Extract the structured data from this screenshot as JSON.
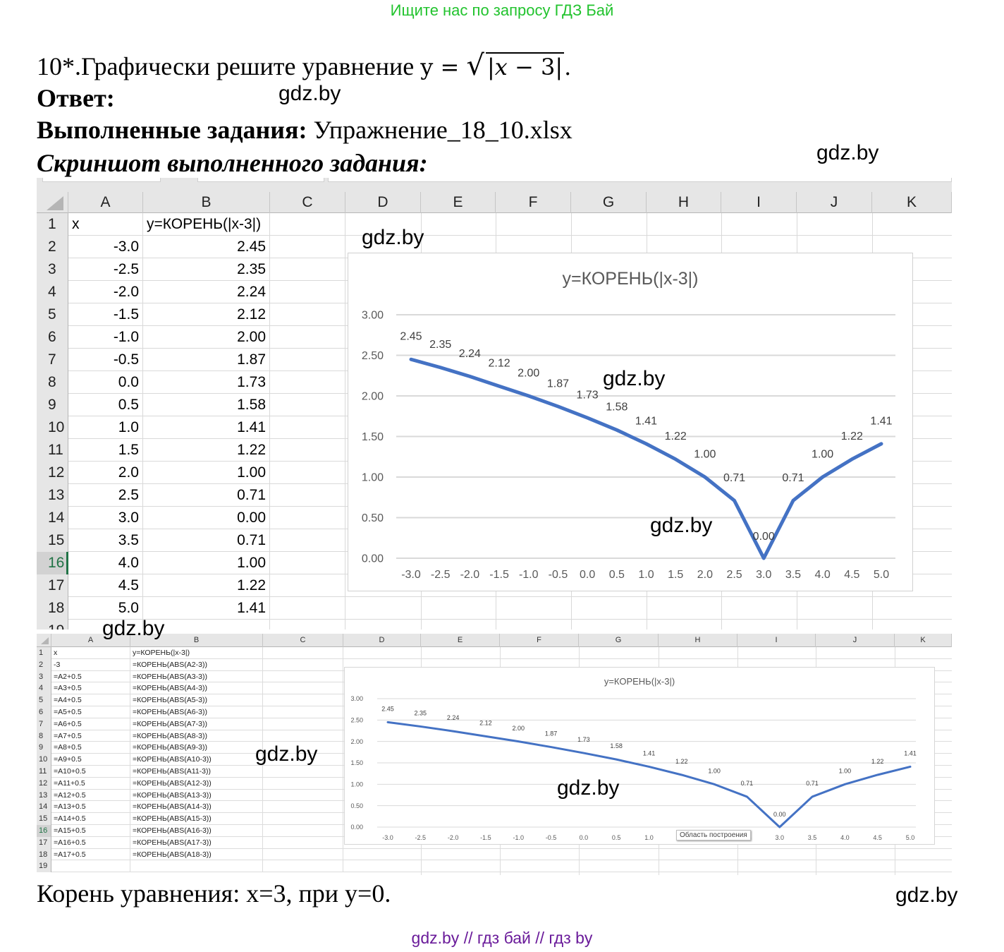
{
  "banner": "Ищите нас по запросу ГДЗ Бай",
  "task": {
    "number": "10*.",
    "text": "Графически решите уравнение ",
    "formula_lhs": "y = ",
    "formula_radicand_open": "|",
    "formula_var": "x",
    "formula_rest": " − 3",
    "formula_radicand_close": "|",
    "formula_end": "."
  },
  "answer_label": "Ответ:",
  "done": {
    "label": "Выполненные задания:",
    "file": " Упражнение_18_10.xlsx"
  },
  "screenshot_label": "Скриншот выполненного задания:",
  "watermarks": {
    "w1": "gdz.by",
    "w2": "gdz.by",
    "w3": "gdz.by",
    "w4": "gdz.by",
    "w5": "gdz.by",
    "w6": "gdz.by",
    "w7": "gdz.by",
    "w8": "gdz.by",
    "w9": "gdz.by"
  },
  "sheet_values": {
    "columns": [
      "A",
      "B",
      "C",
      "D",
      "E",
      "F",
      "G",
      "H",
      "I",
      "J",
      "K"
    ],
    "selected_row": 16,
    "rows": [
      {
        "n": "1",
        "a": "x",
        "b": "y=КОРЕНЬ(|x-3|)"
      },
      {
        "n": "2",
        "a": "-3.0",
        "b": "2.45"
      },
      {
        "n": "3",
        "a": "-2.5",
        "b": "2.35"
      },
      {
        "n": "4",
        "a": "-2.0",
        "b": "2.24"
      },
      {
        "n": "5",
        "a": "-1.5",
        "b": "2.12"
      },
      {
        "n": "6",
        "a": "-1.0",
        "b": "2.00"
      },
      {
        "n": "7",
        "a": "-0.5",
        "b": "1.87"
      },
      {
        "n": "8",
        "a": "0.0",
        "b": "1.73"
      },
      {
        "n": "9",
        "a": "0.5",
        "b": "1.58"
      },
      {
        "n": "10",
        "a": "1.0",
        "b": "1.41"
      },
      {
        "n": "11",
        "a": "1.5",
        "b": "1.22"
      },
      {
        "n": "12",
        "a": "2.0",
        "b": "1.00"
      },
      {
        "n": "13",
        "a": "2.5",
        "b": "0.71"
      },
      {
        "n": "14",
        "a": "3.0",
        "b": "0.00"
      },
      {
        "n": "15",
        "a": "3.5",
        "b": "0.71"
      },
      {
        "n": "16",
        "a": "4.0",
        "b": "1.00"
      },
      {
        "n": "17",
        "a": "4.5",
        "b": "1.22"
      },
      {
        "n": "18",
        "a": "5.0",
        "b": "1.41"
      },
      {
        "n": "19",
        "a": "",
        "b": ""
      }
    ]
  },
  "sheet_formulas": {
    "columns": [
      "A",
      "B",
      "C",
      "D",
      "E",
      "F",
      "G",
      "H",
      "I",
      "J",
      "K"
    ],
    "selected_row": 16,
    "rows": [
      {
        "n": "1",
        "a": "x",
        "b": "y=КОРЕНЬ(|x-3|)"
      },
      {
        "n": "2",
        "a": "-3",
        "b": "=КОРЕНЬ(ABS(A2-3))"
      },
      {
        "n": "3",
        "a": "=A2+0.5",
        "b": "=КОРЕНЬ(ABS(A3-3))"
      },
      {
        "n": "4",
        "a": "=A3+0.5",
        "b": "=КОРЕНЬ(ABS(A4-3))"
      },
      {
        "n": "5",
        "a": "=A4+0.5",
        "b": "=КОРЕНЬ(ABS(A5-3))"
      },
      {
        "n": "6",
        "a": "=A5+0.5",
        "b": "=КОРЕНЬ(ABS(A6-3))"
      },
      {
        "n": "7",
        "a": "=A6+0.5",
        "b": "=КОРЕНЬ(ABS(A7-3))"
      },
      {
        "n": "8",
        "a": "=A7+0.5",
        "b": "=КОРЕНЬ(ABS(A8-3))"
      },
      {
        "n": "9",
        "a": "=A8+0.5",
        "b": "=КОРЕНЬ(ABS(A9-3))"
      },
      {
        "n": "10",
        "a": "=A9+0.5",
        "b": "=КОРЕНЬ(ABS(A10-3))"
      },
      {
        "n": "11",
        "a": "=A10+0.5",
        "b": "=КОРЕНЬ(ABS(A11-3))"
      },
      {
        "n": "12",
        "a": "=A11+0.5",
        "b": "=КОРЕНЬ(ABS(A12-3))"
      },
      {
        "n": "13",
        "a": "=A12+0.5",
        "b": "=КОРЕНЬ(ABS(A13-3))"
      },
      {
        "n": "14",
        "a": "=A13+0.5",
        "b": "=КОРЕНЬ(ABS(A14-3))"
      },
      {
        "n": "15",
        "a": "=A14+0.5",
        "b": "=КОРЕНЬ(ABS(A15-3))"
      },
      {
        "n": "16",
        "a": "=A15+0.5",
        "b": "=КОРЕНЬ(ABS(A16-3))"
      },
      {
        "n": "17",
        "a": "=A16+0.5",
        "b": "=КОРЕНЬ(ABS(A17-3))"
      },
      {
        "n": "18",
        "a": "=A17+0.5",
        "b": "=КОРЕНЬ(ABS(A18-3))"
      },
      {
        "n": "19",
        "a": "",
        "b": ""
      }
    ]
  },
  "tooltip": "Область построения",
  "conclusion": "Корень уравнения: x=3, при y=0.",
  "footer": "gdz.by  //  гдз бай  //  гдз by",
  "colors": {
    "line": "#4472c4",
    "gridline": "#d9d9d9",
    "axis_text": "#595959",
    "banner": "#22c32e",
    "footer": "#6a1b9a",
    "selected_row": "#217346"
  },
  "chart_data": {
    "type": "line",
    "title": "y=КОРЕНЬ(|x-3|)",
    "xlabel": "",
    "ylabel": "",
    "categories": [
      "-3.0",
      "-2.5",
      "-2.0",
      "-1.5",
      "-1.0",
      "-0.5",
      "0.0",
      "0.5",
      "1.0",
      "1.5",
      "2.0",
      "2.5",
      "3.0",
      "3.5",
      "4.0",
      "4.5",
      "5.0"
    ],
    "values": [
      2.45,
      2.35,
      2.24,
      2.12,
      2.0,
      1.87,
      1.73,
      1.58,
      1.41,
      1.22,
      1.0,
      0.71,
      0.0,
      0.71,
      1.0,
      1.22,
      1.41
    ],
    "data_labels": [
      "2.45",
      "2.35",
      "2.24",
      "2.12",
      "2.00",
      "1.87",
      "1.73",
      "1.58",
      "1.41",
      "1.22",
      "1.00",
      "0.71",
      "0.00",
      "0.71",
      "1.00",
      "1.22",
      "1.41"
    ],
    "yticks": [
      "0.00",
      "0.50",
      "1.00",
      "1.50",
      "2.00",
      "2.50",
      "3.00"
    ],
    "ylim": [
      0,
      3
    ],
    "grid": true,
    "legend": "none"
  }
}
